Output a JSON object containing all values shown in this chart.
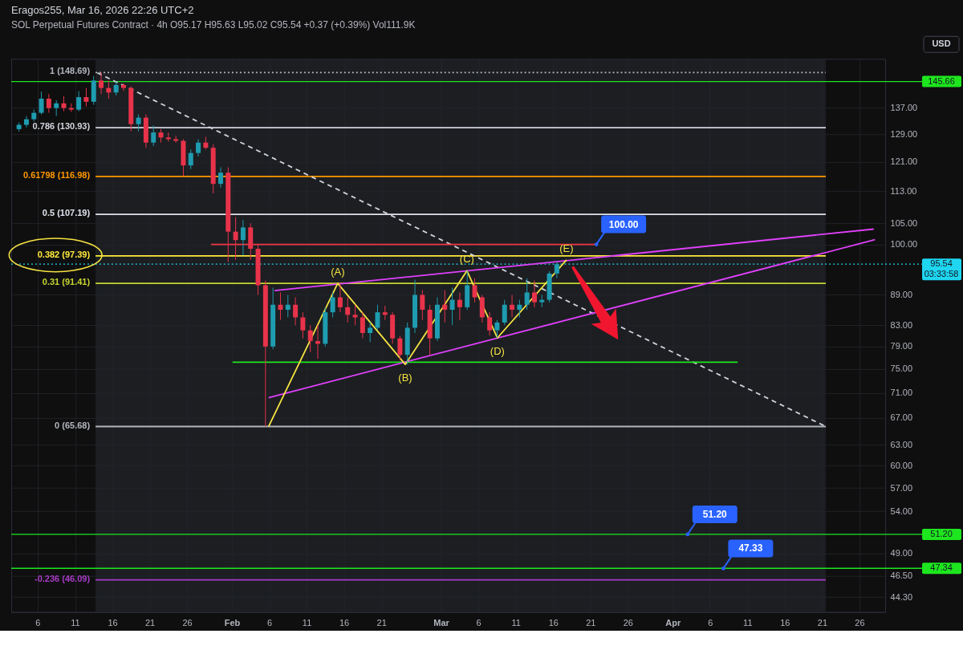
{
  "chart_data": {
    "type": "candlestick",
    "title": "Eragos255, Mar 16, 2026 22:26 UTC+2",
    "subtitle": "SOL Perpetual Futures Contract · 4h  O95.17  H95.63  L95.02  C95.54  +0.37 (+0.39%)  Vol111.9K",
    "x": [
      "2026-01-03T12:00",
      "2026-01-04T12:00",
      "2026-01-05T12:00",
      "2026-01-06T12:00",
      "2026-01-07T12:00",
      "2026-01-08T12:00",
      "2026-01-09T12:00",
      "2026-01-10T12:00",
      "2026-01-11T12:00",
      "2026-01-12T12:00",
      "2026-01-13T12:00",
      "2026-01-14T12:00",
      "2026-01-15T12:00",
      "2026-01-16T12:00",
      "2026-01-17T12:00",
      "2026-01-18T12:00",
      "2026-01-19T12:00",
      "2026-01-20T12:00",
      "2026-01-21T12:00",
      "2026-01-22T12:00",
      "2026-01-23T12:00",
      "2026-01-24T12:00",
      "2026-01-25T12:00",
      "2026-01-26T12:00",
      "2026-01-27T12:00",
      "2026-01-28T12:00",
      "2026-01-29T12:00",
      "2026-01-30T12:00",
      "2026-01-31T12:00",
      "2026-02-01T12:00",
      "2026-02-02T12:00",
      "2026-02-03T12:00",
      "2026-02-04T12:00",
      "2026-02-05T12:00",
      "2026-02-06T12:00",
      "2026-02-07T12:00",
      "2026-02-08T12:00",
      "2026-02-09T12:00",
      "2026-02-10T12:00",
      "2026-02-11T12:00",
      "2026-02-12T12:00",
      "2026-02-13T12:00",
      "2026-02-14T12:00",
      "2026-02-15T12:00",
      "2026-02-16T12:00",
      "2026-02-17T12:00",
      "2026-02-18T12:00",
      "2026-02-19T12:00",
      "2026-02-20T12:00",
      "2026-02-21T12:00",
      "2026-02-22T12:00",
      "2026-02-23T12:00",
      "2026-02-24T12:00",
      "2026-02-25T12:00",
      "2026-02-26T12:00",
      "2026-02-27T12:00",
      "2026-02-28T12:00",
      "2026-03-01T12:00",
      "2026-03-02T12:00",
      "2026-03-03T12:00",
      "2026-03-04T12:00",
      "2026-03-05T12:00",
      "2026-03-06T12:00",
      "2026-03-07T12:00",
      "2026-03-08T12:00",
      "2026-03-09T12:00",
      "2026-03-10T12:00",
      "2026-03-11T12:00",
      "2026-03-12T12:00",
      "2026-03-13T12:00",
      "2026-03-14T12:00",
      "2026-03-15T12:00",
      "2026-03-16T12:00"
    ],
    "ohlc": [
      [
        130.5,
        132.5,
        129.8,
        131.8
      ],
      [
        131.8,
        134.5,
        131,
        133.5
      ],
      [
        133.5,
        136.5,
        132.8,
        135.5
      ],
      [
        135.5,
        142.3,
        135,
        140
      ],
      [
        140,
        141.5,
        135.5,
        137
      ],
      [
        137,
        139.5,
        134.5,
        138.5
      ],
      [
        138.5,
        140.8,
        136,
        137
      ],
      [
        137,
        138.5,
        135.8,
        136.5
      ],
      [
        136.5,
        142.5,
        136,
        140.5
      ],
      [
        140.5,
        143.5,
        137.5,
        139
      ],
      [
        139,
        147.5,
        138,
        146
      ],
      [
        146,
        148.69,
        141.5,
        143.5
      ],
      [
        143.5,
        146,
        140,
        142
      ],
      [
        142,
        145.5,
        141,
        144.5
      ],
      [
        144.5,
        145,
        142.5,
        143.5
      ],
      [
        143.5,
        144,
        129.8,
        132
      ],
      [
        132,
        135,
        129.8,
        134
      ],
      [
        134,
        135,
        125,
        126.5
      ],
      [
        126.5,
        131.6,
        125.5,
        129.5
      ],
      [
        129.5,
        130.5,
        126.5,
        128
      ],
      [
        128,
        129.5,
        126.8,
        127.5
      ],
      [
        127.5,
        128.5,
        126.5,
        127
      ],
      [
        127,
        127.5,
        117.1,
        120
      ],
      [
        120,
        124.5,
        119,
        123.5
      ],
      [
        123.5,
        127.5,
        122.5,
        126.5
      ],
      [
        126.5,
        128.2,
        124.5,
        125
      ],
      [
        125,
        126,
        112.5,
        115
      ],
      [
        115,
        119.5,
        114,
        118
      ],
      [
        118,
        119.5,
        96,
        103
      ],
      [
        103,
        106.5,
        96.5,
        101
      ],
      [
        101,
        105.8,
        97.5,
        104
      ],
      [
        104,
        105,
        96.5,
        99
      ],
      [
        99,
        100,
        89,
        91
      ],
      [
        91,
        92,
        65.68,
        79
      ],
      [
        79,
        90.5,
        78.5,
        87
      ],
      [
        87,
        89.5,
        84,
        86
      ],
      [
        86,
        89,
        84.5,
        87
      ],
      [
        87,
        88.5,
        83,
        84.5
      ],
      [
        84.5,
        85.5,
        80.5,
        82
      ],
      [
        82,
        83,
        78,
        80
      ],
      [
        80,
        83,
        76.8,
        79.5
      ],
      [
        79.5,
        86.5,
        79,
        85.5
      ],
      [
        85.5,
        89.5,
        84.5,
        88.5
      ],
      [
        88.5,
        91.41,
        85.5,
        86.5
      ],
      [
        86.5,
        88.5,
        83.5,
        85
      ],
      [
        85,
        87,
        83,
        84.5
      ],
      [
        84.5,
        85.5,
        80.5,
        81.5
      ],
      [
        81.5,
        83.5,
        79.8,
        82.5
      ],
      [
        82.5,
        87,
        82,
        85.5
      ],
      [
        85.5,
        86.8,
        84,
        85
      ],
      [
        85,
        85.5,
        79.5,
        80.5
      ],
      [
        80.5,
        81,
        76.5,
        77.5
      ],
      [
        77.5,
        83.5,
        75.8,
        82.5
      ],
      [
        82.5,
        92.2,
        81.5,
        89
      ],
      [
        89,
        90,
        84,
        86
      ],
      [
        86,
        87,
        77.5,
        80.5
      ],
      [
        80.5,
        88.5,
        80,
        87
      ],
      [
        87,
        90,
        83.5,
        86
      ],
      [
        86,
        90.5,
        83,
        88
      ],
      [
        88,
        89.5,
        84,
        86.5
      ],
      [
        86.5,
        94.1,
        86,
        91
      ],
      [
        91,
        92.5,
        87.5,
        88.5
      ],
      [
        88.5,
        89,
        83.5,
        84.5
      ],
      [
        84.5,
        85.5,
        81,
        82
      ],
      [
        82,
        84,
        80.6,
        83.5
      ],
      [
        83.5,
        88,
        83,
        87
      ],
      [
        87,
        89,
        84.5,
        86
      ],
      [
        86,
        88,
        84.5,
        87
      ],
      [
        87,
        92.5,
        86,
        89.5
      ],
      [
        89.5,
        92,
        86.5,
        87.5
      ],
      [
        87.5,
        89,
        86.5,
        88
      ],
      [
        88,
        94,
        87.5,
        93.5
      ],
      [
        93.5,
        96,
        92.5,
        95.54
      ]
    ],
    "colors": [
      "#1f9cb0",
      "#1f9cb0",
      "#1f9cb0",
      "#1f9cb0",
      "#e8334a",
      "#1f9cb0",
      "#e8334a",
      "#e8334a",
      "#1f9cb0",
      "#e8334a",
      "#1f9cb0",
      "#e8334a",
      "#e8334a",
      "#1f9cb0",
      "#e8334a",
      "#e8334a",
      "#1f9cb0",
      "#e8334a",
      "#1f9cb0",
      "#e8334a",
      "#e8334a",
      "#e8334a",
      "#e8334a",
      "#1f9cb0",
      "#1f9cb0",
      "#e8334a",
      "#e8334a",
      "#1f9cb0",
      "#e8334a",
      "#e8334a",
      "#1f9cb0",
      "#e8334a",
      "#e8334a",
      "#e8334a",
      "#1f9cb0",
      "#e8334a",
      "#1f9cb0",
      "#e8334a",
      "#e8334a",
      "#e8334a",
      "#e8334a",
      "#1f9cb0",
      "#1f9cb0",
      "#e8334a",
      "#e8334a",
      "#e8334a",
      "#e8334a",
      "#1f9cb0",
      "#1f9cb0",
      "#e8334a",
      "#e8334a",
      "#e8334a",
      "#1f9cb0",
      "#1f9cb0",
      "#e8334a",
      "#e8334a",
      "#1f9cb0",
      "#e8334a",
      "#1f9cb0",
      "#e8334a",
      "#1f9cb0",
      "#e8334a",
      "#e8334a",
      "#e8334a",
      "#1f9cb0",
      "#1f9cb0",
      "#e8334a",
      "#1f9cb0",
      "#1f9cb0",
      "#e8334a",
      "#1f9cb0",
      "#1f9cb0",
      "#1f9cb0"
    ],
    "series": [
      {
        "type": "line",
        "name": "1 (148.69)",
        "color": "#b2b5be",
        "line_style": "dotted",
        "x": [
          "2026-01-13T18:00",
          "2026-04-21T12:00"
        ],
        "values": [
          148.69,
          148.69
        ]
      },
      {
        "type": "line",
        "name": "0.786 (130.93)",
        "color": "#d1d4dc",
        "x": [
          "2026-01-13T18:00",
          "2026-04-21T12:00"
        ],
        "values": [
          130.93,
          130.93
        ]
      },
      {
        "type": "line",
        "name": "0.61798 (116.98)",
        "color": "#ff9800",
        "x": [
          "2026-01-13T18:00",
          "2026-04-21T12:00"
        ],
        "values": [
          116.98,
          116.98
        ]
      },
      {
        "type": "line",
        "name": "0.5 (107.19)",
        "color": "#e0e3eb",
        "x": [
          "2026-01-13T18:00",
          "2026-04-21T12:00"
        ],
        "values": [
          107.19,
          107.19
        ]
      },
      {
        "type": "line",
        "name": "0.382 (97.39)",
        "color": "#ffeb3b",
        "x": [
          "2026-01-13T18:00",
          "2026-04-21T12:00"
        ],
        "values": [
          97.39,
          97.39
        ]
      },
      {
        "type": "line",
        "name": "0.31 (91.41)",
        "color": "#c6d530",
        "x": [
          "2026-01-13T18:00",
          "2026-04-21T12:00"
        ],
        "values": [
          91.41,
          91.41
        ]
      },
      {
        "type": "line",
        "name": "0 (65.68)",
        "color": "#b2b5be",
        "x": [
          "2026-01-13T18:00",
          "2026-04-21T12:00"
        ],
        "values": [
          65.68,
          65.68
        ]
      },
      {
        "type": "line",
        "name": "-0.236 (46.09)",
        "color": "#a83cc8",
        "x": [
          "2026-01-13T18:00",
          "2026-04-21T12:00"
        ],
        "values": [
          46.09,
          46.09
        ]
      },
      {
        "type": "line",
        "color": "#d1d4dc",
        "line_style": "dashed",
        "x": [
          "2026-01-14T00:00",
          "2026-04-21T12:00"
        ],
        "values": [
          148.6,
          65.68
        ]
      },
      {
        "type": "line",
        "color": "#f23645",
        "x": [
          "2026-01-29T05:00",
          "2026-03-21T19:00"
        ],
        "values": [
          100,
          100
        ]
      },
      {
        "type": "line",
        "color": "#1ee61e",
        "x": [
          "2026-02-01T02:00",
          "2026-04-09T17:00"
        ],
        "values": [
          76.2,
          76.2
        ]
      },
      {
        "type": "line",
        "color": "#e040fb",
        "x": [
          "2026-02-06T17:00",
          "2026-04-27T22:00"
        ],
        "values": [
          89.9,
          103.6
        ]
      },
      {
        "type": "line",
        "color": "#e040fb",
        "x": [
          "2026-02-05T22:00",
          "2026-04-28T02:00"
        ],
        "values": [
          70.2,
          101.1
        ]
      },
      {
        "type": "line",
        "color": "#f5e342",
        "x": [
          "2026-02-05T22:00",
          "2026-02-15T04:00",
          "2026-02-24T05:00",
          "2026-03-04T11:00",
          "2026-03-08T13:00",
          "2026-03-17T19:00"
        ],
        "values": [
          65.68,
          91.41,
          75.8,
          94.1,
          80.6,
          96.5
        ]
      }
    ],
    "ref_lines": [
      {
        "axis": "y",
        "value": 145.66,
        "label": "145.66",
        "color": "#1ee61e"
      },
      {
        "axis": "y",
        "value": 95.54,
        "label": "95.54\n03:33:58",
        "color": "#1fd6f0",
        "line_style": "dotted"
      },
      {
        "axis": "y",
        "value": 51.2,
        "label": "51.20",
        "color": "#1ee61e"
      },
      {
        "axis": "y",
        "value": 47.34,
        "label": "47.34",
        "color": "#1ee61e"
      }
    ],
    "bands": [
      {
        "axis": "x",
        "from": "2026-01-13T18:00",
        "to": "2026-04-21T12:00",
        "color": "#22242a"
      }
    ],
    "annotations": [
      {
        "text": "(A)",
        "x": "2026-02-15T04:00",
        "y": 91.41
      },
      {
        "text": "(B)",
        "x": "2026-02-24T05:00",
        "y": 75.8
      },
      {
        "text": "(C)",
        "x": "2026-03-04T11:00",
        "y": 94.1
      },
      {
        "text": "(D)",
        "x": "2026-03-08T13:00",
        "y": 80.6
      },
      {
        "text": "(E)",
        "x": "2026-03-17T19:00",
        "y": 96.5
      },
      {
        "text": "100.00",
        "x": "2026-03-21T19:00",
        "y": 100
      },
      {
        "text": "51.20",
        "x": "2026-04-03T00:00",
        "y": 51.2
      },
      {
        "text": "47.33",
        "x": "2026-04-07T19:00",
        "y": 47.33
      },
      "USD"
    ],
    "xlim": [
      "2026-01-03T00:00",
      "2026-04-28T22:00"
    ],
    "xticks": [
      {
        "value": "2026-01-06",
        "label": "6"
      },
      {
        "value": "2026-01-11",
        "label": "11"
      },
      {
        "value": "2026-01-16",
        "label": "16"
      },
      {
        "value": "2026-01-21",
        "label": "21"
      },
      {
        "value": "2026-01-26",
        "label": "26"
      },
      {
        "value": "2026-02-01",
        "label": "Feb"
      },
      {
        "value": "2026-02-06",
        "label": "6"
      },
      {
        "value": "2026-02-11",
        "label": "11"
      },
      {
        "value": "2026-02-16",
        "label": "16"
      },
      {
        "value": "2026-02-21",
        "label": "21"
      },
      {
        "value": "2026-03-01",
        "label": "Mar"
      },
      {
        "value": "2026-03-06",
        "label": "6"
      },
      {
        "value": "2026-03-11",
        "label": "11"
      },
      {
        "value": "2026-03-16",
        "label": "16"
      },
      {
        "value": "2026-03-21",
        "label": "21"
      },
      {
        "value": "2026-03-26",
        "label": "26"
      },
      {
        "value": "2026-04-01",
        "label": "Apr"
      },
      {
        "value": "2026-04-06",
        "label": "6"
      },
      {
        "value": "2026-04-11",
        "label": "11"
      },
      {
        "value": "2026-04-16",
        "label": "16"
      },
      {
        "value": "2026-04-21",
        "label": "21"
      },
      {
        "value": "2026-04-26",
        "label": "26"
      }
    ],
    "ylim": [
      42.8,
      153.5
    ],
    "yticks": [
      {
        "value": 44.3,
        "label": "44.30"
      },
      {
        "value": 46.5,
        "label": "46.50"
      },
      {
        "value": 49,
        "label": "49.00"
      },
      {
        "value": 54,
        "label": "54.00"
      },
      {
        "value": 57,
        "label": "57.00"
      },
      {
        "value": 60,
        "label": "60.00"
      },
      {
        "value": 63,
        "label": "63.00"
      },
      {
        "value": 67,
        "label": "67.00"
      },
      {
        "value": 71,
        "label": "71.00"
      },
      {
        "value": 75,
        "label": "75.00"
      },
      {
        "value": 79,
        "label": "79.00"
      },
      {
        "value": 83,
        "label": "83.00"
      },
      {
        "value": 89,
        "label": "89.00"
      },
      {
        "value": 100,
        "label": "100.00"
      },
      {
        "value": 105,
        "label": "105.00"
      },
      {
        "value": 113,
        "label": "113.00"
      },
      {
        "value": 121,
        "label": "121.00"
      },
      {
        "value": 129,
        "label": "129.00"
      },
      {
        "value": 137,
        "label": "137.00"
      }
    ],
    "log": true,
    "grid": true
  }
}
